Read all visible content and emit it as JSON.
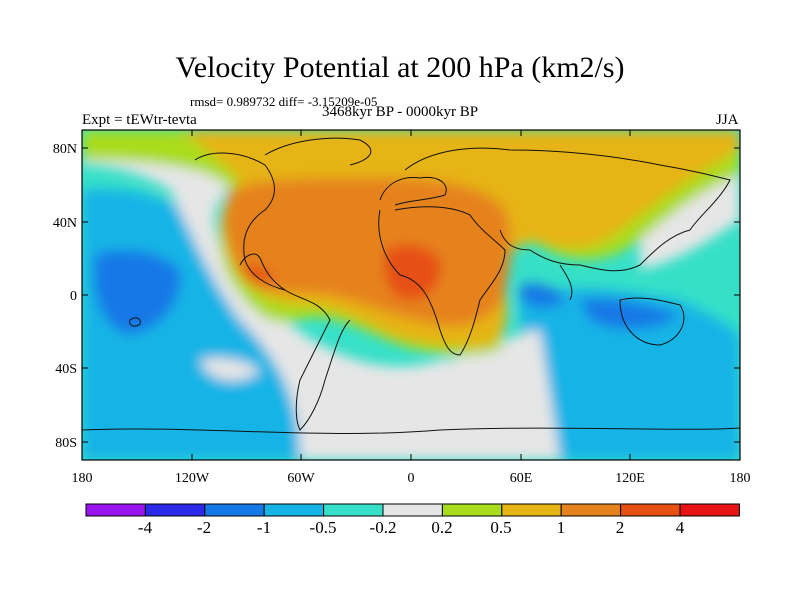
{
  "title": "Velocity Potential at 200 hPa (km2/s)",
  "stats_line": "rmsd= 0.989732 diff= -3.15209e-05",
  "experiment_label": "Expt = tEWtr-tevta",
  "period_label": "3468kyr BP - 0000kyr BP",
  "season_label": "JJA",
  "map": {
    "lat_labels": [
      "80N",
      "40N",
      "0",
      "40S",
      "80S"
    ],
    "lon_labels": [
      "180",
      "120W",
      "60W",
      "0",
      "60E",
      "120E",
      "180"
    ]
  },
  "colorbar": {
    "labels": [
      "-4",
      "-2",
      "-1",
      "-0.5",
      "-0.2",
      "0.2",
      "0.5",
      "1",
      "2",
      "4"
    ],
    "colors": [
      "#9a14f0",
      "#2a2ae8",
      "#1478e6",
      "#14b4e6",
      "#36e0c8",
      "#e6e6e6",
      "#aadc1e",
      "#e6b414",
      "#e6821e",
      "#e65014",
      "#e61414"
    ]
  }
}
